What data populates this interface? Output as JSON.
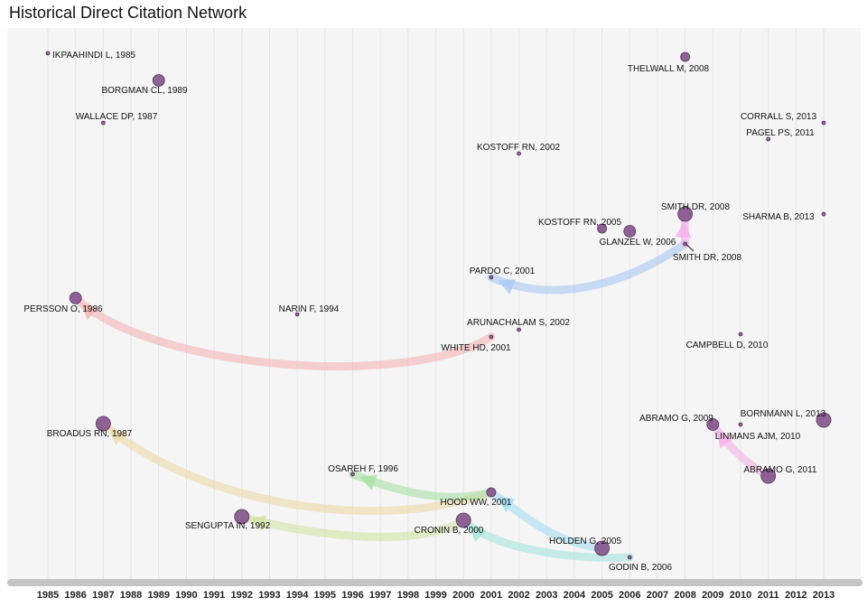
{
  "title": "Historical Direct Citation Network",
  "chart_data": {
    "type": "network",
    "title": "Historical Direct Citation Network",
    "x_axis": {
      "type": "year",
      "ticks": [
        "1985",
        "1986",
        "1987",
        "1988",
        "1989",
        "1990",
        "1991",
        "1992",
        "1993",
        "1994",
        "1995",
        "1996",
        "1997",
        "1998",
        "1999",
        "2000",
        "2001",
        "2002",
        "2003",
        "2004",
        "2005",
        "2006",
        "2007",
        "2008",
        "2009",
        "2010",
        "2011",
        "2012",
        "2013"
      ],
      "grid": true
    },
    "nodes": [
      {
        "id": "ikpaahindi",
        "label": "IKPAAHINDI L, 1985",
        "year": 1985,
        "size": 1
      },
      {
        "id": "borgman",
        "label": "BORGMAN CL, 1989",
        "year": 1989,
        "size": 3
      },
      {
        "id": "wallace",
        "label": "WALLACE DP, 1987",
        "year": 1987,
        "size": 1
      },
      {
        "id": "thelwall",
        "label": "THELWALL M, 2008",
        "year": 2008,
        "size": 2
      },
      {
        "id": "corrall",
        "label": "CORRALL S, 2013",
        "year": 2013,
        "size": 1
      },
      {
        "id": "pagel",
        "label": "PAGEL PS, 2011",
        "year": 2011,
        "size": 1
      },
      {
        "id": "kostoff2002",
        "label": "KOSTOFF RN, 2002",
        "year": 2002,
        "size": 1
      },
      {
        "id": "smith2008a",
        "label": "SMITH DR, 2008",
        "year": 2008,
        "size": 4
      },
      {
        "id": "kostoff2005",
        "label": "KOSTOFF RN, 2005",
        "year": 2005,
        "size": 2
      },
      {
        "id": "glanzel",
        "label": "GLANZEL W, 2006",
        "year": 2006,
        "size": 3
      },
      {
        "id": "sharma",
        "label": "SHARMA B, 2013",
        "year": 2013,
        "size": 1
      },
      {
        "id": "smith2008b",
        "label": "SMITH DR, 2008",
        "year": 2008,
        "size": 1
      },
      {
        "id": "pardo",
        "label": "PARDO C, 2001",
        "year": 2001,
        "size": 1
      },
      {
        "id": "persson",
        "label": "PERSSON O, 1986",
        "year": 1986,
        "size": 3
      },
      {
        "id": "narin",
        "label": "NARIN F, 1994",
        "year": 1994,
        "size": 1
      },
      {
        "id": "arunachalam",
        "label": "ARUNACHALAM S, 2002",
        "year": 2002,
        "size": 1
      },
      {
        "id": "whitehd",
        "label": "WHITE HD, 2001",
        "year": 2001,
        "size": 1
      },
      {
        "id": "campbell",
        "label": "CAMPBELL D, 2010",
        "year": 2010,
        "size": 1
      },
      {
        "id": "abramo2009",
        "label": "ABRAMO G, 2009",
        "year": 2009,
        "size": 3
      },
      {
        "id": "bornmann",
        "label": "BORNMANN L, 2013",
        "year": 2013,
        "size": 4
      },
      {
        "id": "linmans",
        "label": "LINMANS AJM, 2010",
        "year": 2010,
        "size": 1
      },
      {
        "id": "abramo2011",
        "label": "ABRAMO G, 2011",
        "year": 2011,
        "size": 4
      },
      {
        "id": "broadus",
        "label": "BROADUS RN, 1987",
        "year": 1987,
        "size": 4
      },
      {
        "id": "osareh",
        "label": "OSAREH F, 1996",
        "year": 1996,
        "size": 1
      },
      {
        "id": "hood",
        "label": "HOOD WW, 2001",
        "year": 2001,
        "size": 2
      },
      {
        "id": "sengupta",
        "label": "SENGUPTA IN, 1992",
        "year": 1992,
        "size": 4
      },
      {
        "id": "cronin",
        "label": "CRONIN B, 2000",
        "year": 2000,
        "size": 4
      },
      {
        "id": "holden",
        "label": "HOLDEN G, 2005",
        "year": 2005,
        "size": 4
      },
      {
        "id": "godin",
        "label": "GODIN B, 2006",
        "year": 2006,
        "size": 1
      }
    ],
    "edges": [
      {
        "from": "whitehd",
        "to": "persson",
        "color": "#f4b4b4"
      },
      {
        "from": "smith2008b",
        "to": "pardo",
        "color": "#a9c8f4"
      },
      {
        "from": "smith2008b",
        "to": "smith2008a",
        "color": "#f4b0ec"
      },
      {
        "from": "hood",
        "to": "broadus",
        "color": "#edd8a8"
      },
      {
        "from": "hood",
        "to": "osareh",
        "color": "#a8e0a4"
      },
      {
        "from": "cronin",
        "to": "sengupta",
        "color": "#d2e2a4"
      },
      {
        "from": "holden",
        "to": "hood",
        "color": "#a4ddf2"
      },
      {
        "from": "godin",
        "to": "cronin",
        "color": "#a4e4dc"
      },
      {
        "from": "abramo2011",
        "to": "abramo2009",
        "color": "#f4b0e4"
      }
    ],
    "colors": {
      "node_fill": "#8a5a92",
      "node_stroke": "#4a2a52",
      "panel": "#f5f5f5",
      "grid": "#e6e6e6",
      "axis_bar": "#c4c4c4"
    }
  }
}
